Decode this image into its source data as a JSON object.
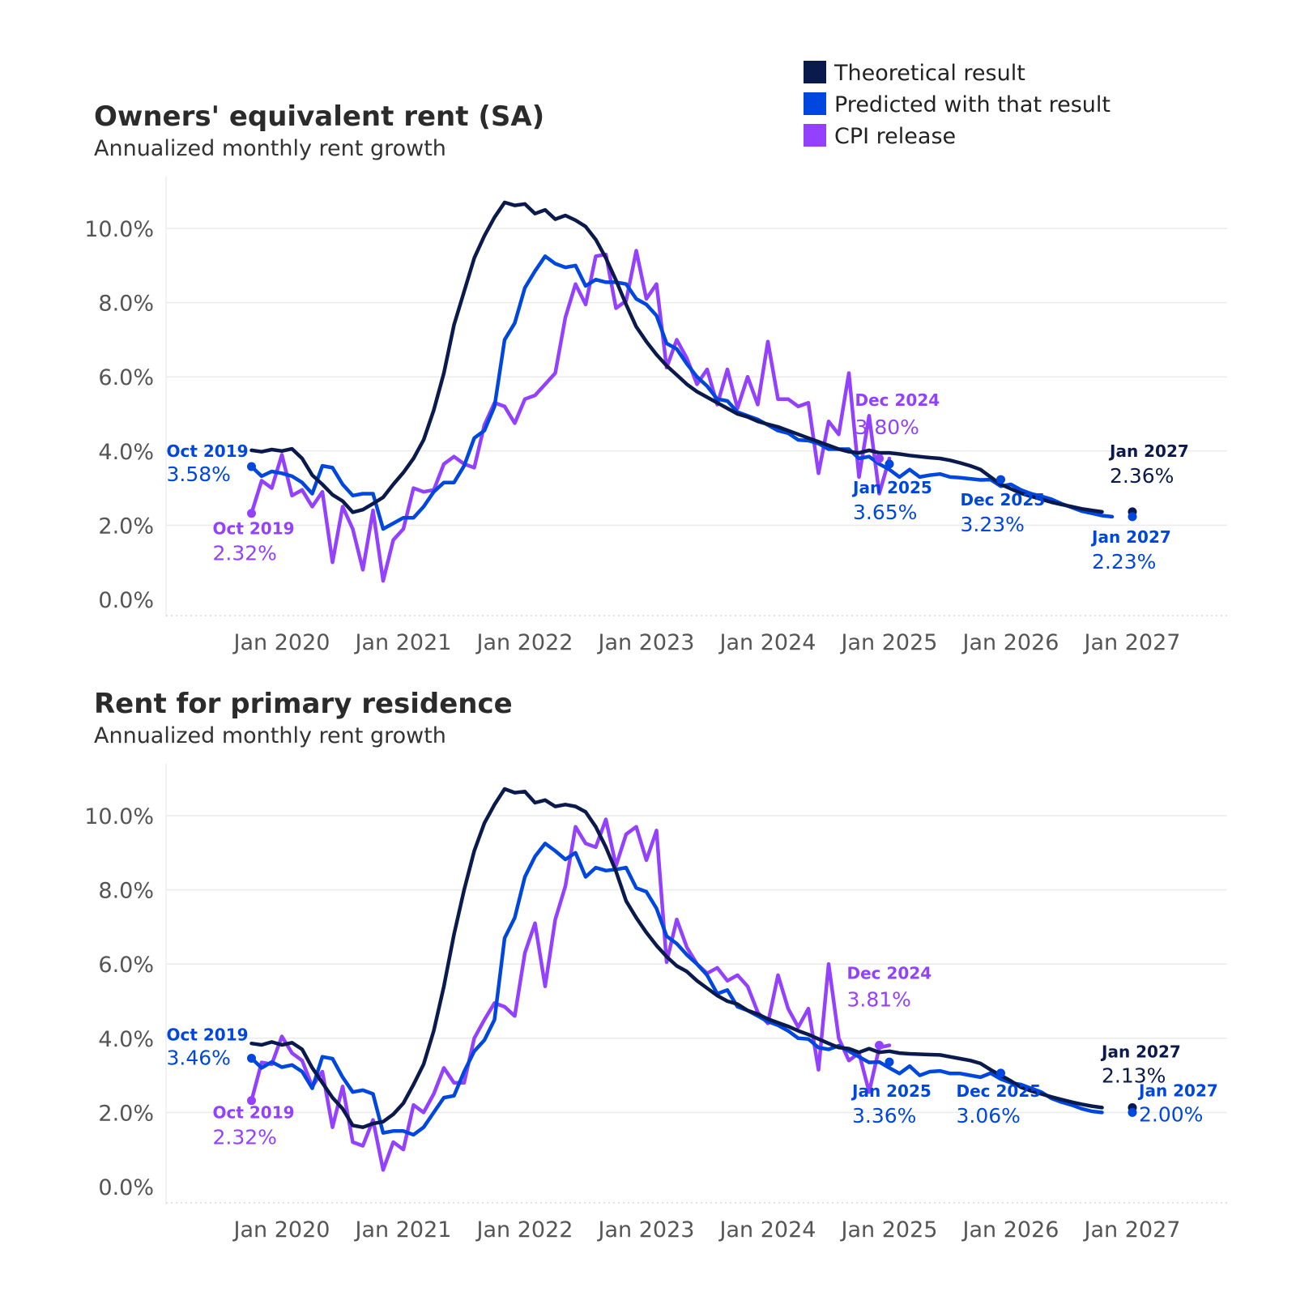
{
  "legend": [
    {
      "label": "Theoretical result",
      "color": "#0b1a4d"
    },
    {
      "label": "Predicted with that result",
      "color": "#0047e0"
    },
    {
      "label": "CPI release",
      "color": "#9440ff"
    }
  ],
  "chart_data": [
    {
      "type": "line",
      "title": "Owners' equivalent rent (SA)",
      "subtitle": "Annualized monthly rent growth",
      "x_unit": "months since Jan 2020",
      "x_ticks": [
        {
          "x": 0,
          "label": "Jan 2020"
        },
        {
          "x": 12,
          "label": "Jan 2021"
        },
        {
          "x": 24,
          "label": "Jan 2022"
        },
        {
          "x": 36,
          "label": "Jan 2023"
        },
        {
          "x": 48,
          "label": "Jan 2024"
        },
        {
          "x": 60,
          "label": "Jan 2025"
        },
        {
          "x": 72,
          "label": "Jan 2026"
        },
        {
          "x": 84,
          "label": "Jan 2027"
        }
      ],
      "y_ticks": [
        {
          "y": 0,
          "label": "0.0%"
        },
        {
          "y": 2,
          "label": "2.0%"
        },
        {
          "y": 4,
          "label": "4.0%"
        },
        {
          "y": 6,
          "label": "6.0%"
        },
        {
          "y": 8,
          "label": "8.0%"
        },
        {
          "y": 10,
          "label": "10.0%"
        }
      ],
      "xlim": [
        -12,
        94
      ],
      "ylim": [
        -0.4,
        11.3
      ],
      "series": [
        {
          "name": "Theoretical result",
          "color": "#0b1a4d",
          "x0": -3,
          "values": [
            4.02,
            3.98,
            4.04,
            4.0,
            4.06,
            3.8,
            3.35,
            3.1,
            2.82,
            2.65,
            2.35,
            2.42,
            2.58,
            2.75,
            3.1,
            3.42,
            3.8,
            4.3,
            5.1,
            6.1,
            7.4,
            8.3,
            9.2,
            9.8,
            10.3,
            10.7,
            10.62,
            10.66,
            10.4,
            10.5,
            10.25,
            10.35,
            10.22,
            10.05,
            9.7,
            9.2,
            8.6,
            7.95,
            7.35,
            6.95,
            6.6,
            6.3,
            6.05,
            5.8,
            5.6,
            5.45,
            5.3,
            5.15,
            5.0,
            4.92,
            4.8,
            4.72,
            4.65,
            4.55,
            4.45,
            4.35,
            4.25,
            4.15,
            4.05,
            3.98,
            3.95,
            4.02,
            3.95,
            3.95,
            3.92,
            3.88,
            3.85,
            3.82,
            3.8,
            3.75,
            3.68,
            3.6,
            3.5,
            3.3,
            3.1,
            2.98,
            2.86,
            2.78,
            2.7,
            2.62,
            2.56,
            2.5,
            2.44,
            2.4,
            2.36
          ]
        },
        {
          "name": "Predicted with that result",
          "color": "#0047e0",
          "x0": -3,
          "values": [
            3.58,
            3.32,
            3.45,
            3.4,
            3.32,
            3.15,
            2.85,
            3.6,
            3.55,
            3.1,
            2.8,
            2.85,
            2.85,
            1.9,
            2.05,
            2.2,
            2.2,
            2.5,
            2.9,
            3.15,
            3.15,
            3.6,
            4.35,
            4.55,
            5.2,
            7.0,
            7.45,
            8.4,
            8.85,
            9.25,
            9.05,
            8.95,
            9.0,
            8.45,
            8.62,
            8.55,
            8.55,
            8.5,
            8.1,
            7.95,
            7.65,
            6.9,
            6.75,
            6.35,
            6.0,
            5.75,
            5.4,
            5.35,
            5.05,
            4.95,
            4.85,
            4.7,
            4.55,
            4.48,
            4.3,
            4.28,
            4.2,
            4.05,
            4.05,
            4.05,
            3.8,
            3.85,
            3.65,
            3.5,
            3.3,
            3.5,
            3.3,
            3.35,
            3.38,
            3.3,
            3.28,
            3.25,
            3.22,
            3.23,
            3.05,
            3.1,
            2.95,
            2.85,
            2.78,
            2.7,
            2.58,
            2.48,
            2.38,
            2.32,
            2.26,
            2.23
          ]
        },
        {
          "name": "CPI release",
          "color": "#9440ff",
          "x0": -3,
          "values": [
            2.32,
            3.2,
            3.0,
            3.9,
            2.8,
            2.95,
            2.5,
            2.9,
            1.0,
            2.5,
            1.9,
            0.8,
            2.4,
            0.5,
            1.6,
            1.9,
            3.0,
            2.9,
            2.95,
            3.65,
            3.85,
            3.65,
            3.55,
            4.7,
            5.3,
            5.2,
            4.75,
            5.4,
            5.5,
            5.8,
            6.1,
            7.6,
            8.5,
            7.95,
            9.25,
            9.3,
            7.85,
            8.05,
            9.4,
            8.1,
            8.5,
            6.25,
            7.0,
            6.5,
            5.8,
            6.2,
            5.25,
            6.2,
            5.15,
            6.0,
            5.25,
            6.95,
            5.4,
            5.4,
            5.2,
            5.3,
            3.4,
            4.8,
            4.45,
            6.1,
            3.3,
            4.95,
            2.85,
            3.8
          ]
        }
      ],
      "annotations": [
        {
          "x": -3,
          "y": 3.58,
          "series": "Predicted with that result",
          "date": "Oct 2019",
          "value": "3.58%"
        },
        {
          "x": -3,
          "y": 2.32,
          "series": "CPI release",
          "date": "Oct 2019",
          "value": "2.32%"
        },
        {
          "x": 59,
          "y": 3.8,
          "series": "CPI release",
          "date": "Dec 2024",
          "value": "3.80%"
        },
        {
          "x": 60,
          "y": 3.65,
          "series": "Predicted with that result",
          "date": "Jan 2025",
          "value": "3.65%"
        },
        {
          "x": 71,
          "y": 3.23,
          "series": "Predicted with that result",
          "date": "Dec 2025",
          "value": "3.23%"
        },
        {
          "x": 84,
          "y": 2.36,
          "series": "Theoretical result",
          "date": "Jan 2027",
          "value": "2.36%"
        },
        {
          "x": 84,
          "y": 2.23,
          "series": "Predicted with that result",
          "date": "Jan 2027",
          "value": "2.23%"
        }
      ]
    },
    {
      "type": "line",
      "title": "Rent for primary residence",
      "subtitle": "Annualized monthly rent growth",
      "x_unit": "months since Jan 2020",
      "x_ticks": [
        {
          "x": 0,
          "label": "Jan 2020"
        },
        {
          "x": 12,
          "label": "Jan 2021"
        },
        {
          "x": 24,
          "label": "Jan 2022"
        },
        {
          "x": 36,
          "label": "Jan 2023"
        },
        {
          "x": 48,
          "label": "Jan 2024"
        },
        {
          "x": 60,
          "label": "Jan 2025"
        },
        {
          "x": 72,
          "label": "Jan 2026"
        },
        {
          "x": 84,
          "label": "Jan 2027"
        }
      ],
      "y_ticks": [
        {
          "y": 0,
          "label": "0.0%"
        },
        {
          "y": 2,
          "label": "2.0%"
        },
        {
          "y": 4,
          "label": "4.0%"
        },
        {
          "y": 6,
          "label": "6.0%"
        },
        {
          "y": 8,
          "label": "8.0%"
        },
        {
          "y": 10,
          "label": "10.0%"
        }
      ],
      "xlim": [
        -12,
        94
      ],
      "ylim": [
        -0.4,
        11.3
      ],
      "series": [
        {
          "name": "Theoretical result",
          "color": "#0b1a4d",
          "x0": -3,
          "values": [
            3.86,
            3.82,
            3.9,
            3.82,
            3.88,
            3.7,
            3.2,
            2.8,
            2.4,
            2.1,
            1.65,
            1.6,
            1.7,
            1.75,
            1.95,
            2.25,
            2.75,
            3.3,
            4.2,
            5.4,
            6.8,
            8.0,
            9.05,
            9.8,
            10.3,
            10.72,
            10.62,
            10.65,
            10.35,
            10.42,
            10.25,
            10.3,
            10.25,
            10.1,
            9.7,
            9.15,
            8.5,
            7.7,
            7.25,
            6.85,
            6.5,
            6.2,
            5.95,
            5.8,
            5.55,
            5.35,
            5.15,
            5.0,
            4.92,
            4.75,
            4.65,
            4.52,
            4.42,
            4.32,
            4.2,
            4.1,
            3.98,
            3.86,
            3.75,
            3.72,
            3.62,
            3.72,
            3.62,
            3.65,
            3.6,
            3.58,
            3.57,
            3.56,
            3.55,
            3.5,
            3.45,
            3.4,
            3.32,
            3.15,
            3.0,
            2.85,
            2.68,
            2.58,
            2.5,
            2.42,
            2.35,
            2.28,
            2.22,
            2.17,
            2.13
          ]
        },
        {
          "name": "Predicted with that result",
          "color": "#0047e0",
          "x0": -3,
          "values": [
            3.46,
            3.2,
            3.36,
            3.22,
            3.28,
            3.1,
            2.65,
            3.5,
            3.45,
            2.95,
            2.55,
            2.6,
            2.5,
            1.45,
            1.5,
            1.5,
            1.4,
            1.6,
            2.0,
            2.4,
            2.45,
            3.1,
            3.65,
            3.95,
            4.5,
            6.7,
            7.25,
            8.35,
            8.9,
            9.25,
            9.05,
            8.82,
            9.0,
            8.35,
            8.6,
            8.52,
            8.55,
            8.6,
            8.05,
            7.95,
            7.5,
            6.75,
            6.55,
            6.25,
            6.0,
            5.7,
            5.2,
            5.3,
            4.85,
            4.75,
            4.6,
            4.45,
            4.35,
            4.2,
            4.0,
            3.98,
            3.75,
            3.7,
            3.8,
            3.65,
            3.5,
            3.35,
            3.36,
            3.2,
            3.05,
            3.25,
            3.0,
            3.1,
            3.12,
            3.05,
            3.05,
            3.0,
            2.95,
            3.06,
            2.9,
            2.8,
            2.75,
            2.65,
            2.55,
            2.38,
            2.28,
            2.2,
            2.1,
            2.03,
            2.0
          ]
        },
        {
          "name": "CPI release",
          "color": "#9440ff",
          "x0": -3,
          "values": [
            2.32,
            3.35,
            3.3,
            4.05,
            3.6,
            3.4,
            2.7,
            3.1,
            1.6,
            2.7,
            1.2,
            1.1,
            1.8,
            0.45,
            1.2,
            1.0,
            2.2,
            2.0,
            2.5,
            3.2,
            2.8,
            2.8,
            4.0,
            4.5,
            4.95,
            4.85,
            4.6,
            6.3,
            7.1,
            5.4,
            7.2,
            8.1,
            9.7,
            9.25,
            9.15,
            9.9,
            8.65,
            9.5,
            9.7,
            8.8,
            9.6,
            6.05,
            7.2,
            6.45,
            6.0,
            5.75,
            5.9,
            5.55,
            5.7,
            5.4,
            4.7,
            4.4,
            5.7,
            4.8,
            4.3,
            4.8,
            3.15,
            6.0,
            4.0,
            3.4,
            3.6,
            2.55,
            3.75,
            3.81
          ]
        }
      ],
      "annotations": [
        {
          "x": -3,
          "y": 3.46,
          "series": "Predicted with that result",
          "date": "Oct 2019",
          "value": "3.46%"
        },
        {
          "x": -3,
          "y": 2.32,
          "series": "CPI release",
          "date": "Oct 2019",
          "value": "2.32%"
        },
        {
          "x": 59,
          "y": 3.81,
          "series": "CPI release",
          "date": "Dec 2024",
          "value": "3.81%"
        },
        {
          "x": 60,
          "y": 3.36,
          "series": "Predicted with that result",
          "date": "Jan 2025",
          "value": "3.36%"
        },
        {
          "x": 71,
          "y": 3.06,
          "series": "Predicted with that result",
          "date": "Dec 2025",
          "value": "3.06%"
        },
        {
          "x": 84,
          "y": 2.13,
          "series": "Theoretical result",
          "date": "Jan 2027",
          "value": "2.13%"
        },
        {
          "x": 84,
          "y": 2.0,
          "series": "Predicted with that result",
          "date": "Jan 2027",
          "value": "2.00%"
        }
      ]
    }
  ]
}
